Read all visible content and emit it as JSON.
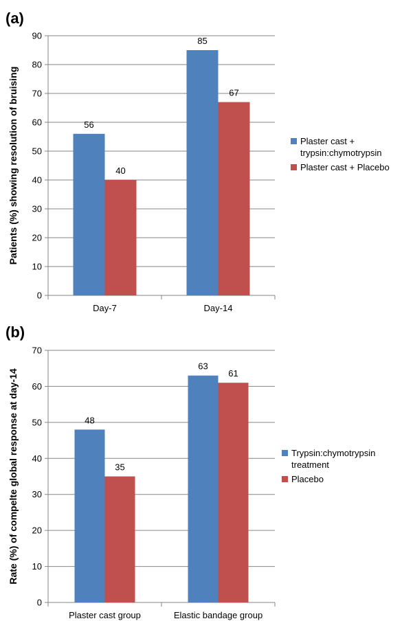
{
  "chart_data": [
    {
      "type": "bar",
      "panel_label": "(a)",
      "categories": [
        "Day-7",
        "Day-14"
      ],
      "series": [
        {
          "name": "Plaster cast + trypsin:chymotrypsin",
          "legend_lines": [
            "Plaster cast +",
            "trypsin:chymotrypsin"
          ],
          "color": "#4F81BD",
          "values": [
            56,
            85
          ]
        },
        {
          "name": "Plaster cast + Placebo",
          "legend_lines": [
            "Plaster cast + Placebo"
          ],
          "color": "#C0504D",
          "values": [
            40,
            67
          ]
        }
      ],
      "ylabel": "Patients (%) showing resolution of bruising",
      "ylim": [
        0,
        90
      ],
      "yticks": [
        0,
        10,
        20,
        30,
        40,
        50,
        60,
        70,
        80,
        90
      ],
      "grid": true,
      "legend_position": "right"
    },
    {
      "type": "bar",
      "panel_label": "(b)",
      "categories": [
        "Plaster cast group",
        "Elastic bandage group"
      ],
      "series": [
        {
          "name": "Trypsin:chymotrypsin treatment",
          "legend_lines": [
            "Trypsin:chymotrypsin",
            "treatment"
          ],
          "color": "#4F81BD",
          "values": [
            48,
            63
          ]
        },
        {
          "name": "Placebo",
          "legend_lines": [
            "Placebo"
          ],
          "color": "#C0504D",
          "values": [
            35,
            61
          ]
        }
      ],
      "ylabel": "Rate (%) of compelte global response at  day-14",
      "ylim": [
        0,
        70
      ],
      "yticks": [
        0,
        10,
        20,
        30,
        40,
        50,
        60,
        70
      ],
      "grid": true,
      "legend_position": "right"
    }
  ]
}
